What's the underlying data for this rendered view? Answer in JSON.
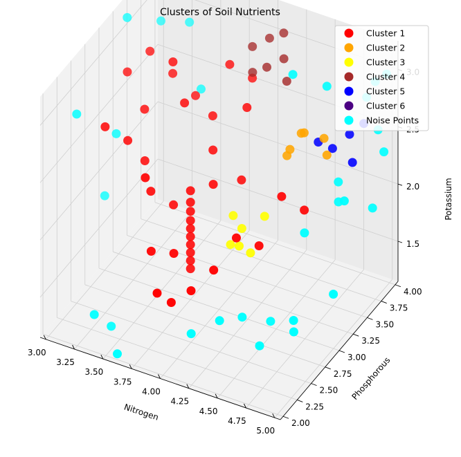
{
  "chart_data": {
    "type": "scatter",
    "projection": "3d",
    "title": "Clusters of Soil Nutrients",
    "xlabel": "Nitrogen",
    "ylabel": "Phosphorous",
    "zlabel": "Potassium",
    "xlim": [
      2.95,
      5.05
    ],
    "ylim": [
      1.95,
      4.05
    ],
    "zlim": [
      1.15,
      3.25
    ],
    "x_ticks": [
      3.0,
      3.25,
      3.5,
      3.75,
      4.0,
      4.25,
      4.5,
      4.75,
      5.0
    ],
    "x_tick_labels": [
      "3.00",
      "3.25",
      "3.50",
      "3.75",
      "4.00",
      "4.25",
      "4.50",
      "4.75",
      "5.00"
    ],
    "y_ticks": [
      2.0,
      2.25,
      2.5,
      2.75,
      3.0,
      3.25,
      3.5,
      3.75,
      4.0
    ],
    "y_tick_labels": [
      "2.00",
      "2.25",
      "2.50",
      "2.75",
      "3.00",
      "3.25",
      "3.50",
      "3.75",
      "4.00"
    ],
    "z_ticks": [
      1.5,
      2.0,
      2.5,
      3.0
    ],
    "z_tick_labels": [
      "1.5",
      "2.0",
      "2.5",
      "3.0"
    ],
    "grid": true,
    "legend_position": "top-right",
    "series": [
      {
        "name": "Cluster 1",
        "color": "#ff0000",
        "points": [
          [
            3.1,
            3.2,
            2.8
          ],
          [
            3.2,
            3.4,
            2.9
          ],
          [
            3.3,
            3.1,
            2.6
          ],
          [
            3.35,
            3.5,
            2.7
          ],
          [
            3.45,
            3.3,
            2.95
          ],
          [
            3.5,
            3.6,
            2.5
          ],
          [
            3.6,
            3.2,
            2.7
          ],
          [
            3.7,
            3.5,
            2.45
          ],
          [
            3.75,
            3.7,
            2.8
          ],
          [
            3.8,
            3.3,
            2.3
          ],
          [
            3.85,
            3.9,
            2.6
          ],
          [
            3.9,
            3.1,
            2.15
          ],
          [
            3.95,
            3.6,
            2.55
          ],
          [
            4.0,
            3.4,
            2.05
          ],
          [
            3.2,
            2.6,
            2.7
          ],
          [
            3.3,
            2.8,
            2.5
          ],
          [
            3.4,
            2.9,
            2.3
          ],
          [
            3.55,
            2.7,
            2.2
          ],
          [
            3.6,
            2.5,
            2.45
          ],
          [
            3.65,
            2.9,
            2.0
          ],
          [
            3.7,
            2.4,
            1.9
          ],
          [
            3.8,
            2.6,
            1.8
          ],
          [
            3.85,
            2.2,
            1.7
          ],
          [
            3.9,
            2.35,
            1.55
          ],
          [
            4.0,
            2.5,
            1.6
          ],
          [
            4.1,
            2.7,
            1.7
          ],
          [
            4.2,
            2.9,
            1.9
          ],
          [
            4.3,
            3.1,
            1.75
          ],
          [
            4.4,
            3.3,
            2.1
          ],
          [
            4.5,
            3.5,
            1.9
          ],
          [
            3.75,
            3.0,
            2.1
          ],
          [
            3.75,
            3.0,
            2.0
          ],
          [
            3.75,
            3.0,
            1.92
          ],
          [
            3.75,
            3.0,
            1.84
          ],
          [
            3.75,
            3.0,
            1.77
          ],
          [
            3.75,
            3.0,
            1.7
          ],
          [
            3.75,
            3.0,
            1.63
          ],
          [
            3.75,
            3.0,
            1.56
          ],
          [
            3.75,
            3.0,
            1.49
          ],
          [
            3.75,
            3.0,
            1.42
          ]
        ]
      },
      {
        "name": "Cluster 2",
        "color": "#ffa500",
        "points": [
          [
            4.3,
            3.6,
            2.25
          ],
          [
            4.35,
            3.55,
            2.35
          ],
          [
            4.4,
            3.65,
            2.45
          ],
          [
            4.6,
            3.7,
            2.3
          ],
          [
            4.55,
            3.75,
            2.4
          ],
          [
            4.45,
            3.6,
            2.5
          ]
        ]
      },
      {
        "name": "Cluster 3",
        "color": "#ffff00",
        "points": [
          [
            4.1,
            3.0,
            1.75
          ],
          [
            4.15,
            3.1,
            1.85
          ],
          [
            4.2,
            2.95,
            1.8
          ],
          [
            4.25,
            3.05,
            1.7
          ],
          [
            4.05,
            3.15,
            1.9
          ],
          [
            4.3,
            3.2,
            1.95
          ]
        ]
      },
      {
        "name": "Cluster 4",
        "color": "#a52a2a",
        "points": [
          [
            3.9,
            3.8,
            2.95
          ],
          [
            4.0,
            3.9,
            3.0
          ],
          [
            4.05,
            3.75,
            2.85
          ],
          [
            4.15,
            3.85,
            2.9
          ],
          [
            4.1,
            3.95,
            3.05
          ],
          [
            3.95,
            3.7,
            2.8
          ],
          [
            4.2,
            3.8,
            2.75
          ]
        ]
      },
      {
        "name": "Cluster 5",
        "color": "#0000ff",
        "points": [
          [
            4.6,
            3.8,
            2.3
          ],
          [
            4.7,
            3.9,
            2.4
          ],
          [
            4.75,
            3.85,
            2.2
          ],
          [
            4.5,
            3.75,
            2.35
          ],
          [
            4.8,
            3.95,
            2.5
          ]
        ]
      },
      {
        "name": "Cluster 6",
        "color": "#4b0082",
        "points": []
      },
      {
        "name": "Noise Points",
        "color": "#00ffff",
        "points": [
          [
            3.0,
            2.5,
            2.8
          ],
          [
            3.05,
            3.3,
            3.2
          ],
          [
            3.1,
            3.8,
            2.9
          ],
          [
            3.15,
            2.9,
            2.45
          ],
          [
            3.0,
            3.0,
            1.8
          ],
          [
            3.35,
            2.1,
            1.4
          ],
          [
            3.4,
            2.3,
            1.2
          ],
          [
            3.3,
            3.9,
            2.9
          ],
          [
            3.6,
            2.0,
            1.2
          ],
          [
            3.5,
            3.7,
            2.5
          ],
          [
            4.05,
            2.4,
            1.3
          ],
          [
            4.2,
            2.6,
            1.35
          ],
          [
            4.3,
            2.8,
            1.3
          ],
          [
            4.45,
            3.0,
            1.2
          ],
          [
            4.55,
            2.6,
            1.25
          ],
          [
            4.7,
            2.9,
            1.35
          ],
          [
            4.8,
            2.7,
            1.4
          ],
          [
            4.95,
            3.1,
            1.55
          ],
          [
            4.6,
            3.3,
            1.85
          ],
          [
            4.75,
            3.6,
            2.0
          ],
          [
            4.85,
            3.5,
            2.1
          ],
          [
            4.95,
            3.8,
            1.9
          ],
          [
            5.0,
            3.9,
            2.35
          ],
          [
            4.9,
            4.0,
            2.45
          ],
          [
            4.8,
            4.0,
            2.7
          ],
          [
            4.9,
            3.95,
            2.9
          ],
          [
            5.0,
            3.95,
            3.0
          ],
          [
            4.6,
            3.7,
            2.9
          ],
          [
            4.4,
            3.5,
            3.05
          ],
          [
            4.7,
            3.7,
            2.1
          ]
        ]
      }
    ]
  }
}
